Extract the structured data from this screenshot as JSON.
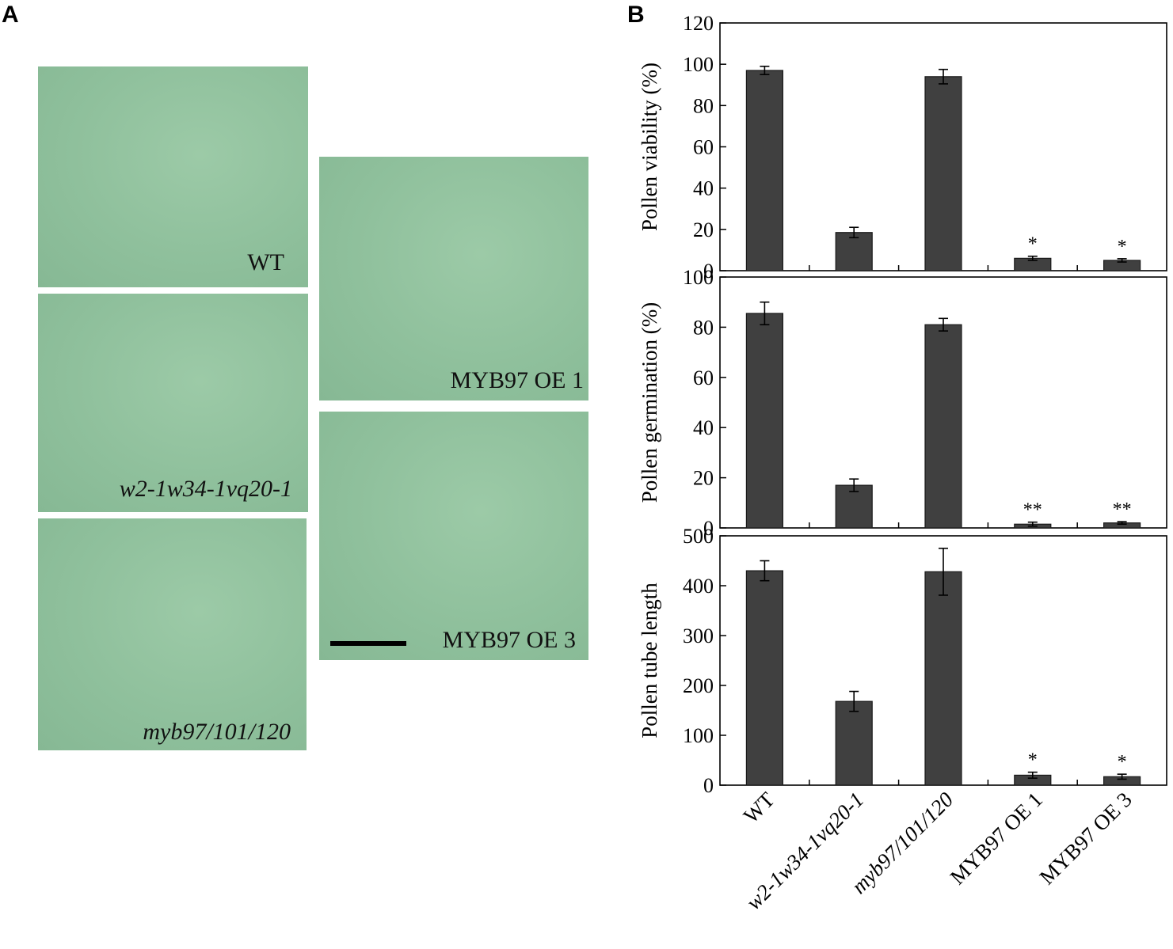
{
  "panel_a": {
    "letter": "A",
    "images": [
      {
        "label": "WT",
        "italic": false
      },
      {
        "label": "w2-1w34-1vq20-1",
        "italic": true
      },
      {
        "label": "myb97/101/120",
        "italic": true
      },
      {
        "label": "MYB97 OE 1",
        "italic": false
      },
      {
        "label": "MYB97 OE 3",
        "italic": false
      }
    ]
  },
  "panel_b": {
    "letter": "B",
    "bar_color": "#404040"
  },
  "chart_data": [
    {
      "type": "bar",
      "categories": [
        "WT",
        "w2-1w34-1vq20-1",
        "myb97/101/120",
        "MYB97 OE 1",
        "MYB97 OE 3"
      ],
      "values": [
        97,
        18.5,
        94,
        6,
        5
      ],
      "errors": [
        2,
        2.5,
        3.5,
        1,
        0.8
      ],
      "significance": [
        "",
        "",
        "",
        "*",
        "*"
      ],
      "ylabel": "Pollen viability (%)",
      "ylim": [
        0,
        120
      ],
      "yticks": [
        0,
        20,
        40,
        60,
        80,
        100,
        120
      ]
    },
    {
      "type": "bar",
      "categories": [
        "WT",
        "w2-1w34-1vq20-1",
        "myb97/101/120",
        "MYB97 OE 1",
        "MYB97 OE 3"
      ],
      "values": [
        85.5,
        17,
        81,
        1.5,
        2
      ],
      "errors": [
        4.5,
        2.5,
        2.5,
        0.8,
        0.5
      ],
      "significance": [
        "",
        "",
        "",
        "**",
        "**"
      ],
      "ylabel": "Pollen germination (%)",
      "ylim": [
        0,
        100
      ],
      "yticks": [
        0,
        20,
        40,
        60,
        80,
        100
      ]
    },
    {
      "type": "bar",
      "categories": [
        "WT",
        "w2-1w34-1vq20-1",
        "myb97/101/120",
        "MYB97 OE 1",
        "MYB97 OE 3"
      ],
      "values": [
        430,
        168,
        428,
        20,
        17
      ],
      "errors": [
        20,
        20,
        47,
        6,
        5
      ],
      "significance": [
        "",
        "",
        "",
        "*",
        "*"
      ],
      "ylabel": "Pollen tube length",
      "ylim": [
        0,
        500
      ],
      "yticks": [
        0,
        100,
        200,
        300,
        400,
        500
      ]
    }
  ],
  "x_axis": {
    "tick_labels": [
      "WT",
      "w2-1w34-1vq20-1",
      "myb97/101/120",
      "MYB97 OE 1",
      "MYB97 OE 3"
    ],
    "italic": [
      false,
      true,
      true,
      false,
      false
    ]
  }
}
